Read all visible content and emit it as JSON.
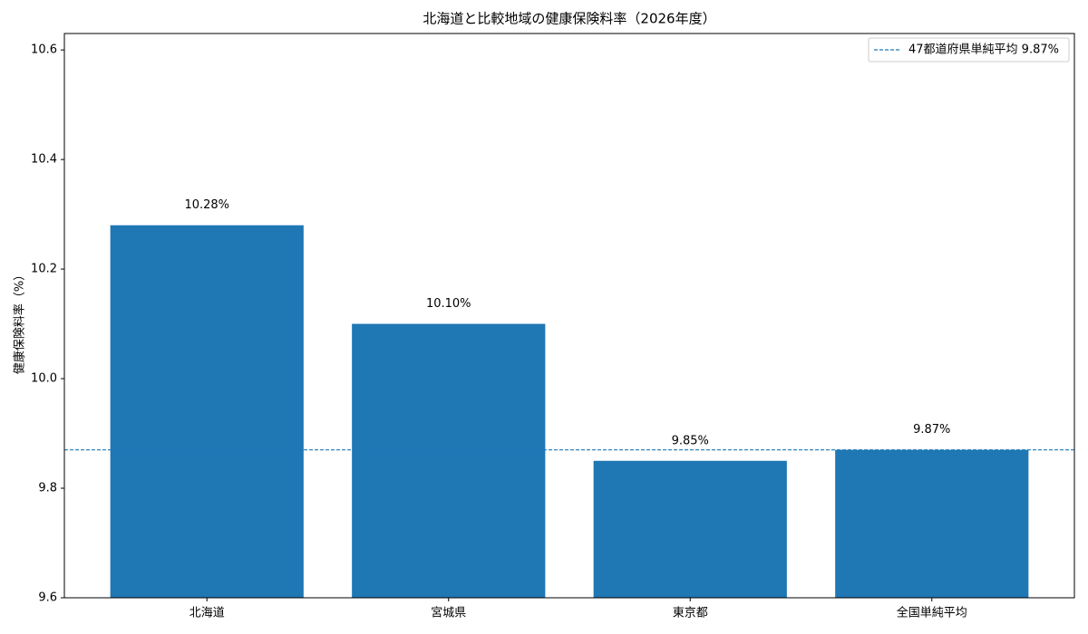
{
  "chart_data": {
    "type": "bar",
    "title": "北海道と比較地域の健康保険料率（2026年度）",
    "y_label": "健康保険料率（%）",
    "categories": [
      "北海道",
      "宮城県",
      "東京都",
      "全国単純平均"
    ],
    "values": [
      10.28,
      10.1,
      9.85,
      9.87
    ],
    "value_labels": [
      "10.28%",
      "10.10%",
      "9.85%",
      "9.87%"
    ],
    "color": "#1f77b4",
    "ylim": [
      9.6,
      10.63
    ],
    "yticks": [
      9.6,
      9.8,
      {
        "value": 10,
        "label": "10.0"
      },
      10.2,
      10.4,
      10.6
    ],
    "reference_line": {
      "value": 9.87,
      "label": "47都道府県単純平均 9.87%",
      "color": "#1f77b4"
    },
    "legend": "upper right"
  }
}
